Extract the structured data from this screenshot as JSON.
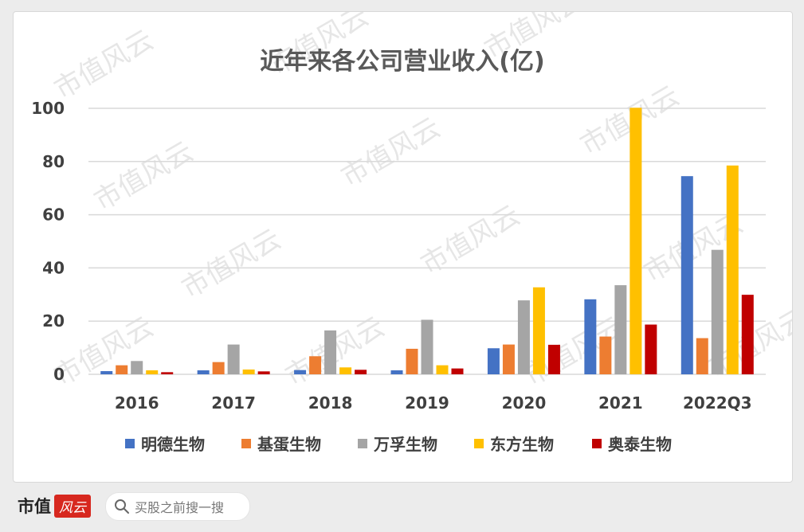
{
  "chart_data": {
    "type": "bar",
    "title": "近年来各公司营业收入(亿)",
    "categories": [
      "2016",
      "2017",
      "2018",
      "2019",
      "2020",
      "2021",
      "2022Q3"
    ],
    "ylim": [
      0,
      100
    ],
    "yticks": [
      "0",
      "20",
      "40",
      "60",
      "80",
      "100"
    ],
    "grid": true,
    "legend_position": "bottom",
    "series": [
      {
        "name": "明德生物",
        "color": "#4472c4",
        "values": [
          1.2,
          1.5,
          1.6,
          1.5,
          9.8,
          28.2,
          74.5
        ]
      },
      {
        "name": "基蛋生物",
        "color": "#ed7d31",
        "values": [
          3.4,
          4.6,
          6.8,
          9.6,
          11.2,
          14.2,
          13.6
        ]
      },
      {
        "name": "万孚生物",
        "color": "#a5a5a5",
        "values": [
          5.0,
          11.2,
          16.5,
          20.5,
          27.8,
          33.5,
          46.8
        ]
      },
      {
        "name": "东方生物",
        "color": "#ffc000",
        "values": [
          1.5,
          1.8,
          2.6,
          3.4,
          32.7,
          100.2,
          78.5
        ]
      },
      {
        "name": "奥泰生物",
        "color": "#c00000",
        "values": [
          0.8,
          1.1,
          1.7,
          2.2,
          11.1,
          18.7,
          29.9
        ]
      }
    ]
  },
  "watermark": "市值风云",
  "footer": {
    "brand": "市值",
    "logo": "风云",
    "search_icon": "search-icon",
    "search_text": "买股之前搜一搜"
  }
}
